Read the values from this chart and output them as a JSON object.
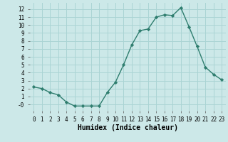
{
  "x": [
    0,
    1,
    2,
    3,
    4,
    5,
    6,
    7,
    8,
    9,
    10,
    11,
    12,
    13,
    14,
    15,
    16,
    17,
    18,
    19,
    20,
    21,
    22,
    23
  ],
  "y": [
    2.2,
    2.0,
    1.5,
    1.2,
    0.3,
    -0.2,
    -0.2,
    -0.2,
    -0.2,
    1.5,
    2.8,
    5.0,
    7.5,
    9.3,
    9.5,
    11.0,
    11.3,
    11.2,
    12.2,
    9.8,
    7.3,
    4.7,
    3.8,
    3.1
  ],
  "line_color": "#2e7d6e",
  "marker": "D",
  "marker_size": 2.2,
  "xlabel": "Humidex (Indice chaleur)",
  "bg_color": "#cce8e8",
  "grid_color": "#aad4d4",
  "ylim": [
    -0.8,
    12.8
  ],
  "xlim": [
    -0.5,
    23.5
  ],
  "yticks": [
    0,
    1,
    2,
    3,
    4,
    5,
    6,
    7,
    8,
    9,
    10,
    11,
    12
  ],
  "xticks": [
    0,
    1,
    2,
    3,
    4,
    5,
    6,
    7,
    8,
    9,
    10,
    11,
    12,
    13,
    14,
    15,
    16,
    17,
    18,
    19,
    20,
    21,
    22,
    23
  ],
  "ytick_labels": [
    "-0",
    "1",
    "2",
    "3",
    "4",
    "5",
    "6",
    "7",
    "8",
    "9",
    "10",
    "11",
    "12"
  ],
  "xtick_labels": [
    "0",
    "1",
    "2",
    "3",
    "4",
    "5",
    "6",
    "7",
    "8",
    "9",
    "10",
    "11",
    "12",
    "13",
    "14",
    "15",
    "16",
    "17",
    "18",
    "19",
    "20",
    "21",
    "22",
    "23"
  ]
}
